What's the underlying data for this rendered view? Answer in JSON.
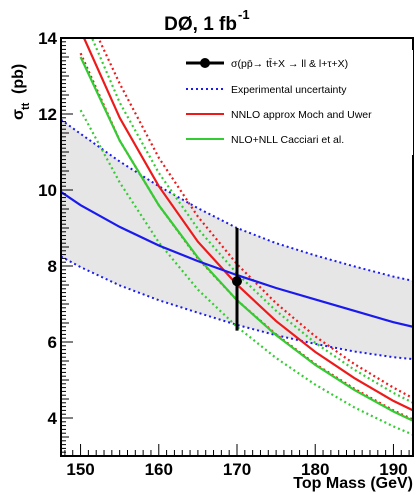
{
  "chart_data": {
    "type": "line",
    "title": "DØ, 1 fb",
    "title_superscript": "-1",
    "xlabel": "Top Mass (GeV)",
    "ylabel_main": "σ",
    "ylabel_sub": "tt",
    "ylabel_unit": "(pb)",
    "xlim": [
      147.5,
      192.5
    ],
    "ylim": [
      3.0,
      14.0
    ],
    "x_ticks": [
      150,
      160,
      170,
      180,
      190
    ],
    "y_ticks": [
      4,
      6,
      8,
      10,
      12,
      14
    ],
    "grid": false,
    "legend_position": "top-right",
    "measurement": {
      "name": "σ(pp̄→ tt̄+X → ll & l+τ+X)",
      "x": 170,
      "y": 7.6,
      "y_low": 6.3,
      "y_high": 9.0,
      "color": "#000000"
    },
    "series": [
      {
        "name": "Experimental uncertainty",
        "role": "band",
        "style": "dotted",
        "color": "#1a1aee",
        "fill": "#e6e6e6",
        "x": [
          147.5,
          150,
          155,
          160,
          165,
          170,
          175,
          180,
          185,
          190,
          192.5
        ],
        "lower": [
          8.25,
          7.97,
          7.49,
          7.1,
          6.77,
          6.45,
          6.18,
          5.95,
          5.75,
          5.6,
          5.55
        ],
        "upper": [
          11.85,
          11.48,
          10.75,
          10.1,
          9.52,
          9.0,
          8.6,
          8.28,
          7.99,
          7.72,
          7.61
        ]
      },
      {
        "name": "",
        "role": "central",
        "style": "solid",
        "color": "#1a1aee",
        "x": [
          147.5,
          150,
          155,
          160,
          165,
          170,
          175,
          180,
          185,
          190,
          192.5
        ],
        "y": [
          9.95,
          9.6,
          9.03,
          8.54,
          8.13,
          7.76,
          7.42,
          7.12,
          6.82,
          6.52,
          6.4
        ]
      },
      {
        "name": "NNLO approx Moch and Uwer",
        "role": "central",
        "style": "solid",
        "color": "#ee1a1a",
        "x": [
          150,
          155,
          160,
          165,
          170,
          175,
          180,
          185,
          190,
          192.5
        ],
        "y": [
          14.2,
          11.9,
          10.1,
          8.64,
          7.51,
          6.55,
          5.74,
          5.05,
          4.45,
          4.2
        ]
      },
      {
        "name": "",
        "role": "upper",
        "style": "dotted",
        "color": "#ee1a1a",
        "x": [
          150,
          155,
          160,
          165,
          170,
          175,
          180,
          185,
          190,
          192.5
        ],
        "y": [
          15.0,
          12.8,
          10.85,
          9.3,
          8.05,
          7.02,
          6.15,
          5.42,
          4.8,
          4.52
        ]
      },
      {
        "name": "",
        "role": "lower",
        "style": "dotted",
        "color": "#ee1a1a",
        "x": [
          150,
          155,
          160,
          165,
          170,
          175,
          180,
          185,
          190,
          192.5
        ],
        "y": [
          13.6,
          11.3,
          9.6,
          8.2,
          7.1,
          6.2,
          5.42,
          4.77,
          4.2,
          3.96
        ]
      },
      {
        "name": "NLO+NLL Cacciari et al.",
        "role": "central",
        "style": "solid",
        "color": "#33cc33",
        "x": [
          150,
          155,
          160,
          165,
          170,
          175,
          180,
          185,
          190,
          192.5
        ],
        "y": [
          13.5,
          11.3,
          9.6,
          8.22,
          7.1,
          6.18,
          5.4,
          4.74,
          4.17,
          3.93
        ]
      },
      {
        "name": "",
        "role": "upper",
        "style": "dotted",
        "color": "#33cc33",
        "x": [
          150,
          155,
          160,
          165,
          170,
          175,
          180,
          185,
          190,
          192.5
        ],
        "y": [
          14.7,
          12.3,
          10.45,
          8.98,
          7.8,
          6.82,
          5.98,
          5.27,
          4.66,
          4.4
        ]
      },
      {
        "name": "",
        "role": "lower",
        "style": "dotted",
        "color": "#33cc33",
        "x": [
          150,
          155,
          160,
          165,
          170,
          175,
          180,
          185,
          190,
          192.5
        ],
        "y": [
          12.1,
          10.2,
          8.62,
          7.38,
          6.4,
          5.58,
          4.88,
          4.28,
          3.78,
          3.56
        ]
      }
    ]
  }
}
